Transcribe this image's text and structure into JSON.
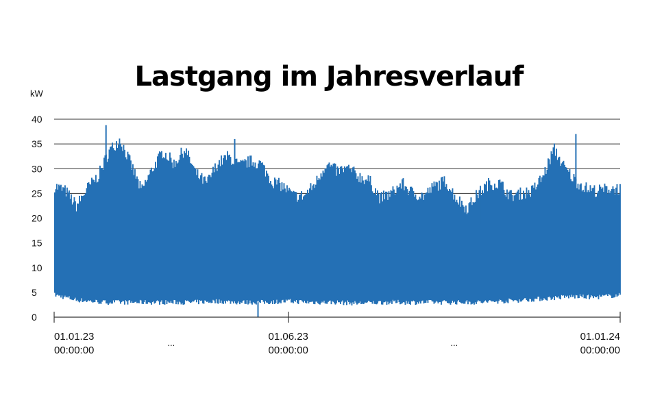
{
  "chart_data": {
    "type": "area",
    "title": "Lastgang im Jahresverlauf",
    "ylabel": "kW",
    "xlabel": "",
    "ylim": [
      0,
      40
    ],
    "yticks": [
      0,
      5,
      10,
      15,
      20,
      25,
      30,
      35,
      40
    ],
    "grid": true,
    "color": "#2470b5",
    "x_range": [
      "2023-01-01T00:00:00",
      "2024-01-01T00:00:00"
    ],
    "xticks": [
      {
        "value": "2023-01-01T00:00:00",
        "label": "01.01.23",
        "label2": "00:00:00"
      },
      {
        "value": "2023-06-01T00:00:00",
        "label": "01.06.23",
        "label2": "00:00:00"
      },
      {
        "value": "2024-01-01T00:00:00",
        "label": "01.01.24",
        "label2": "00:00:00"
      }
    ],
    "ellipsis": "...",
    "series": [
      {
        "kind": "upper_envelope",
        "x": [
          "2023-01-01",
          "2023-01-08",
          "2023-01-15",
          "2023-01-22",
          "2023-01-29",
          "2023-02-05",
          "2023-02-12",
          "2023-02-19",
          "2023-02-26",
          "2023-03-05",
          "2023-03-12",
          "2023-03-19",
          "2023-03-26",
          "2023-04-02",
          "2023-04-09",
          "2023-04-16",
          "2023-04-23",
          "2023-04-30",
          "2023-05-07",
          "2023-05-14",
          "2023-05-21",
          "2023-05-28",
          "2023-06-04",
          "2023-06-11",
          "2023-06-18",
          "2023-06-25",
          "2023-07-02",
          "2023-07-09",
          "2023-07-16",
          "2023-07-23",
          "2023-07-30",
          "2023-08-06",
          "2023-08-13",
          "2023-08-20",
          "2023-08-27",
          "2023-09-03",
          "2023-09-10",
          "2023-09-17",
          "2023-09-24",
          "2023-10-01",
          "2023-10-08",
          "2023-10-15",
          "2023-10-22",
          "2023-10-29",
          "2023-11-05",
          "2023-11-12",
          "2023-11-19",
          "2023-11-26",
          "2023-12-03",
          "2023-12-10",
          "2023-12-17",
          "2023-12-24",
          "2024-01-01"
        ],
        "values": [
          26.5,
          25.5,
          22.5,
          26.0,
          28.5,
          33.5,
          36.0,
          31.0,
          25.5,
          30.0,
          33.5,
          31.0,
          34.0,
          29.0,
          27.0,
          31.0,
          32.5,
          30.5,
          31.5,
          31.0,
          27.5,
          26.5,
          24.5,
          24.5,
          27.0,
          31.0,
          29.5,
          30.0,
          28.5,
          27.5,
          24.0,
          25.0,
          27.0,
          25.0,
          24.5,
          26.5,
          27.5,
          24.0,
          22.0,
          25.0,
          27.0,
          27.0,
          24.5,
          25.0,
          25.5,
          28.5,
          34.0,
          30.0,
          27.5,
          26.0,
          25.5,
          26.0,
          26.0
        ],
        "spikes": [
          {
            "x": "2023-02-03",
            "value": 38.8
          },
          {
            "x": "2023-04-27",
            "value": 36.0
          },
          {
            "x": "2023-12-03",
            "value": 37.0
          },
          {
            "x": "2023-05-31",
            "value": 19.5
          },
          {
            "x": "2023-10-02",
            "value": 18.8
          }
        ]
      },
      {
        "kind": "lower_envelope",
        "x": [
          "2023-01-01",
          "2023-01-15",
          "2023-02-01",
          "2023-02-15",
          "2023-03-01",
          "2023-03-15",
          "2023-04-01",
          "2023-04-15",
          "2023-05-01",
          "2023-05-15",
          "2023-06-01",
          "2023-06-15",
          "2023-07-01",
          "2023-07-15",
          "2023-08-01",
          "2023-08-15",
          "2023-09-01",
          "2023-09-15",
          "2023-10-01",
          "2023-10-15",
          "2023-11-01",
          "2023-11-15",
          "2023-12-01",
          "2023-12-15",
          "2024-01-01"
        ],
        "values": [
          4.5,
          3.5,
          3.0,
          3.0,
          3.0,
          3.0,
          3.0,
          3.2,
          3.0,
          3.0,
          3.2,
          3.0,
          3.0,
          2.8,
          3.0,
          3.0,
          3.0,
          3.0,
          3.0,
          3.2,
          3.5,
          3.8,
          4.2,
          4.0,
          4.5
        ],
        "spikes": [
          {
            "x": "2023-05-12",
            "value": 0.0
          }
        ]
      }
    ]
  }
}
